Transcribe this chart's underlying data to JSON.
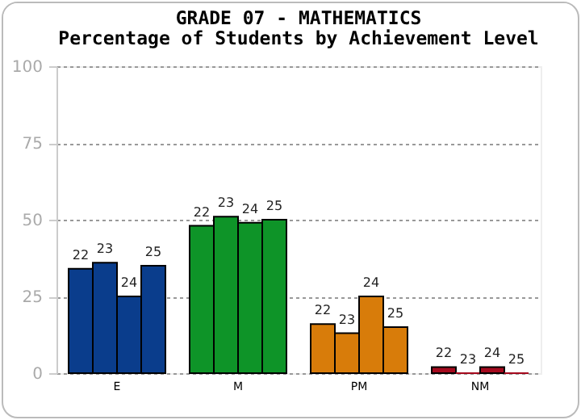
{
  "chart_data": {
    "type": "bar",
    "title": "GRADE 07 - MATHEMATICS",
    "subtitle": "Percentage of Students by Achievement Level",
    "categories": [
      "E",
      "M",
      "PM",
      "NM"
    ],
    "series": [
      {
        "name": "22",
        "colors": [
          "#0a3d8c",
          "#0e9428",
          "#d87c0a",
          "#a50a1e"
        ],
        "values": [
          34,
          48,
          16,
          2
        ]
      },
      {
        "name": "23",
        "colors": [
          "#0a3d8c",
          "#0e9428",
          "#d87c0a",
          "#a50a1e"
        ],
        "values": [
          36,
          51,
          13,
          0
        ]
      },
      {
        "name": "24",
        "colors": [
          "#0a3d8c",
          "#0e9428",
          "#d87c0a",
          "#a50a1e"
        ],
        "values": [
          25,
          49,
          25,
          2
        ]
      },
      {
        "name": "25",
        "colors": [
          "#0a3d8c",
          "#0e9428",
          "#d87c0a",
          "#a50a1e"
        ],
        "values": [
          35,
          50,
          15,
          0
        ]
      }
    ],
    "ylim": [
      0,
      100
    ],
    "yticks": [
      0,
      25,
      50,
      75,
      100
    ],
    "grid": "y"
  }
}
